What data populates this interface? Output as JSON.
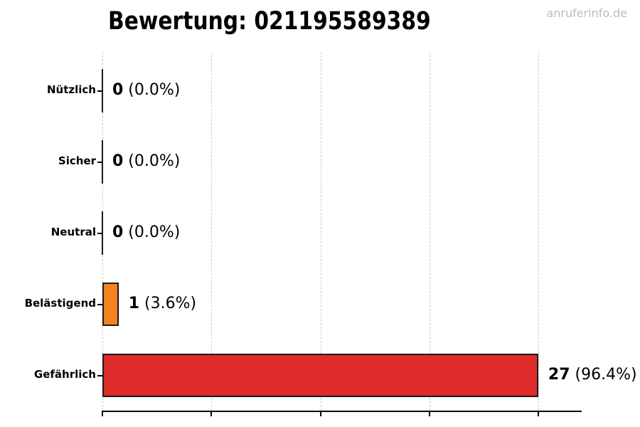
{
  "title": "Bewertung: 021195589389",
  "watermark": "anruferinfo.de",
  "chart_data": {
    "type": "bar",
    "orientation": "horizontal",
    "title": "Bewertung: 021195589389",
    "categories": [
      "Nützlich",
      "Sicher",
      "Neutral",
      "Belästigend",
      "Gefährlich"
    ],
    "values": [
      0,
      0,
      0,
      1,
      27
    ],
    "rows": [
      {
        "label": "Nützlich",
        "count": "0",
        "percent": "0.0%",
        "color": null
      },
      {
        "label": "Sicher",
        "count": "0",
        "percent": "0.0%",
        "color": null
      },
      {
        "label": "Neutral",
        "count": "0",
        "percent": "0.0%",
        "color": null
      },
      {
        "label": "Belästigend",
        "count": "1",
        "percent": "3.6%",
        "color": "#F5821F"
      },
      {
        "label": "Gefährlich",
        "count": "27",
        "percent": "96.4%",
        "color": "#E02B2B"
      }
    ],
    "xlabel": "",
    "ylabel": "",
    "xlim": [
      0,
      29.7
    ],
    "x_tick_count": 5,
    "x_tick_labels": [],
    "grid": "vertical dashed at each x tick",
    "legend": "none",
    "colors": {
      "bar_edge": "#1a1a1a",
      "grid": "#cbcbcb",
      "axis": "#000000",
      "watermark_text": "#bcbcbc",
      "orange": "#F5821F",
      "red": "#E02B2B"
    }
  }
}
